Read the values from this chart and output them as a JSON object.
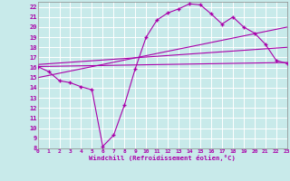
{
  "xlabel": "Windchill (Refroidissement éolien,°C)",
  "background_color": "#c8eaea",
  "grid_color": "#ffffff",
  "line_color": "#aa00aa",
  "xmin": 0,
  "xmax": 23,
  "ymin": 8,
  "ymax": 22.5,
  "line1_x": [
    0,
    1,
    2,
    3,
    4,
    5,
    6,
    7,
    8,
    9,
    10,
    11,
    12,
    13,
    14,
    15,
    16,
    17,
    18,
    19,
    20,
    21,
    22,
    23
  ],
  "line1_y": [
    16.1,
    15.6,
    14.7,
    14.5,
    14.1,
    13.8,
    8.2,
    9.3,
    12.3,
    15.9,
    19.0,
    20.7,
    21.4,
    21.8,
    22.3,
    22.2,
    21.3,
    20.3,
    21.0,
    20.0,
    19.4,
    18.3,
    16.7,
    16.4
  ],
  "line2_x": [
    0,
    23
  ],
  "line2_y": [
    16.1,
    16.5
  ],
  "line3_x": [
    0,
    23
  ],
  "line3_y": [
    15.0,
    20.0
  ],
  "line4_x": [
    0,
    23
  ],
  "line4_y": [
    16.3,
    18.0
  ],
  "yticks": [
    8,
    9,
    10,
    11,
    12,
    13,
    14,
    15,
    16,
    17,
    18,
    19,
    20,
    21,
    22
  ],
  "xticks": [
    0,
    1,
    2,
    3,
    4,
    5,
    6,
    7,
    8,
    9,
    10,
    11,
    12,
    13,
    14,
    15,
    16,
    17,
    18,
    19,
    20,
    21,
    22,
    23
  ]
}
